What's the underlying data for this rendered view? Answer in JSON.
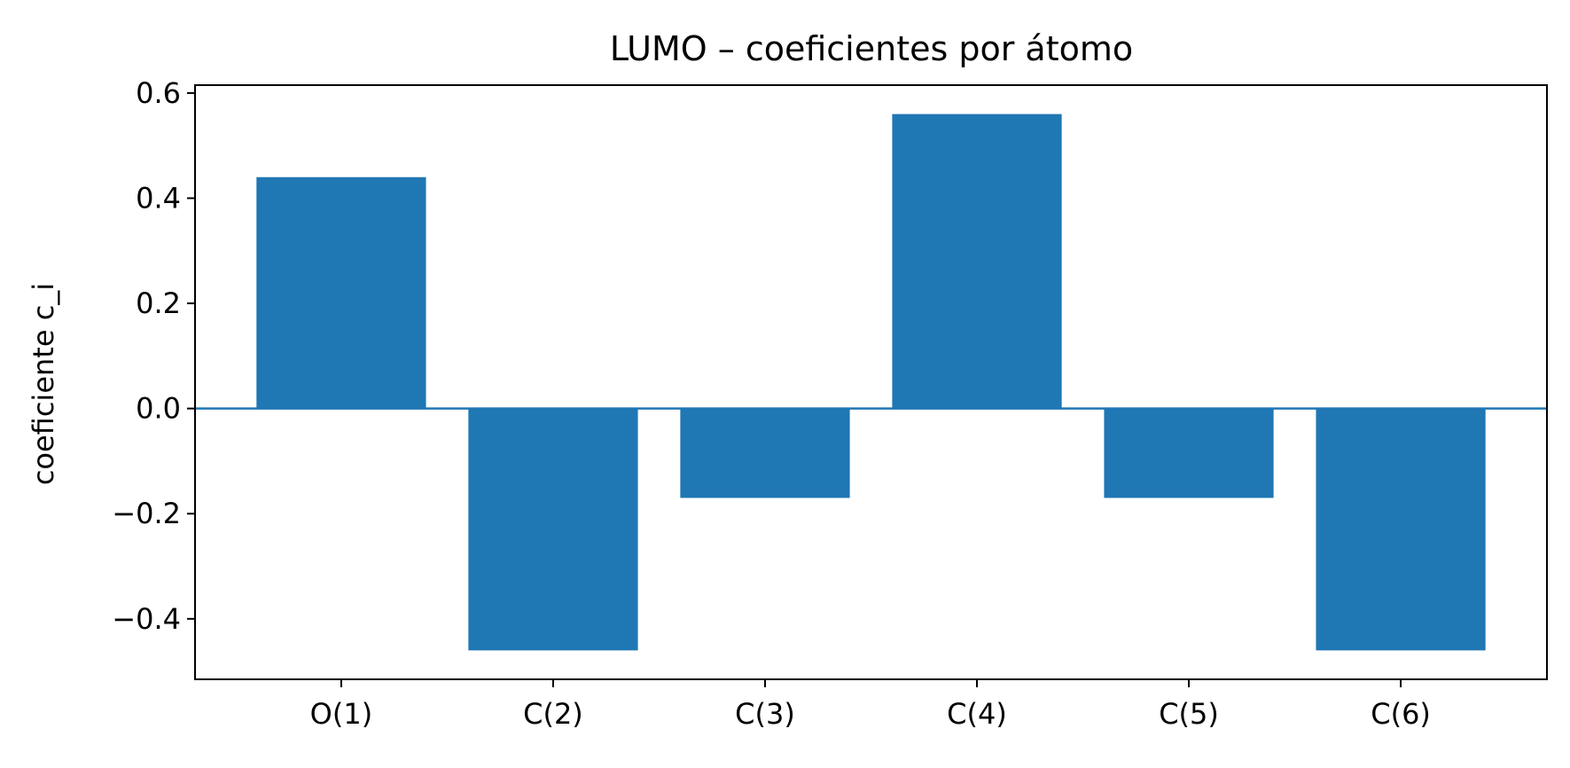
{
  "chart_data": {
    "type": "bar",
    "title": "LUMO – coeficientes por átomo",
    "xlabel": "",
    "ylabel": "coeficiente c_i",
    "categories": [
      "O(1)",
      "C(2)",
      "C(3)",
      "C(4)",
      "C(5)",
      "C(6)"
    ],
    "values": [
      0.44,
      -0.46,
      -0.17,
      0.56,
      -0.17,
      -0.46
    ],
    "ylim": [
      -0.515,
      0.615
    ],
    "yticks": [
      -0.4,
      -0.2,
      0.0,
      0.2,
      0.4,
      0.6
    ],
    "ytick_labels": [
      "−0.4",
      "−0.2",
      "0.0",
      "0.2",
      "0.4",
      "0.6"
    ],
    "zero_line": true,
    "grid": false,
    "legend": "none",
    "bar_color": "#1f77b4"
  }
}
